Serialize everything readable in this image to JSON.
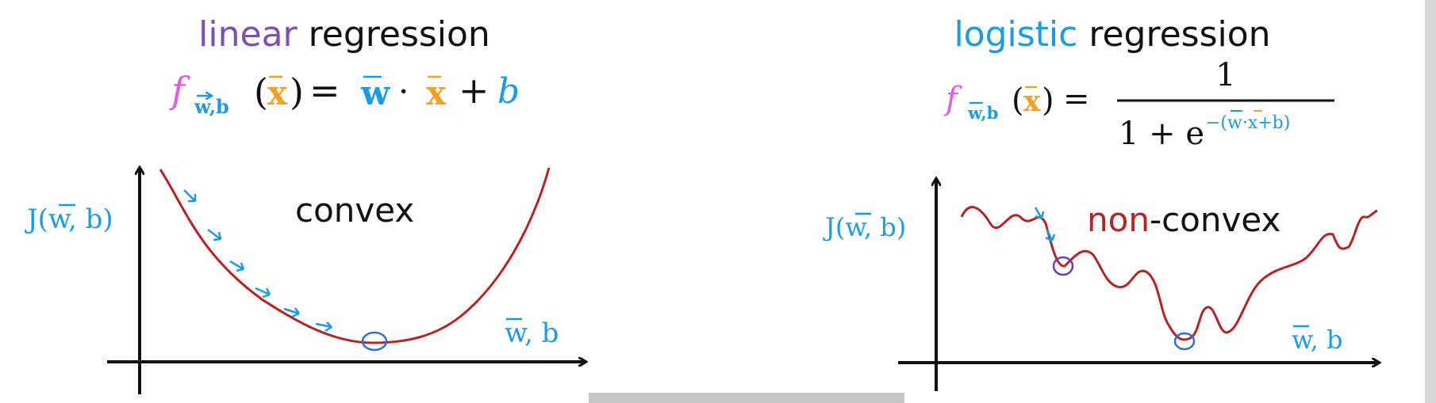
{
  "colors": {
    "purple": "#7c4dbb",
    "blue": "#1a9be6",
    "magenta": "#e05ce8",
    "orange": "#f5a023",
    "curve_red": "#b82222",
    "black": "#111111"
  },
  "left": {
    "title_colored": "linear",
    "title_rest": " regression",
    "formula": {
      "f": "f",
      "subscript": "w,b",
      "x": "x",
      "equals": "=",
      "w": "w",
      "dot": "·",
      "x2": "x",
      "plus": "+",
      "b": "b"
    },
    "graph": {
      "y_label": "J(w, b)",
      "x_label": "w, b",
      "curve_label": "convex"
    }
  },
  "right": {
    "title_colored": "logistic",
    "title_rest": " regression",
    "formula": {
      "f": "f",
      "subscript": "w,b",
      "x": "x",
      "equals": "=",
      "numerator": "1",
      "denominator_base": "1 + e",
      "exponent": "−(w·x+b)"
    },
    "graph": {
      "y_label": "J(w, b)",
      "x_label": "w, b",
      "curve_label_colored": "non",
      "curve_label_rest": "-convex"
    }
  }
}
